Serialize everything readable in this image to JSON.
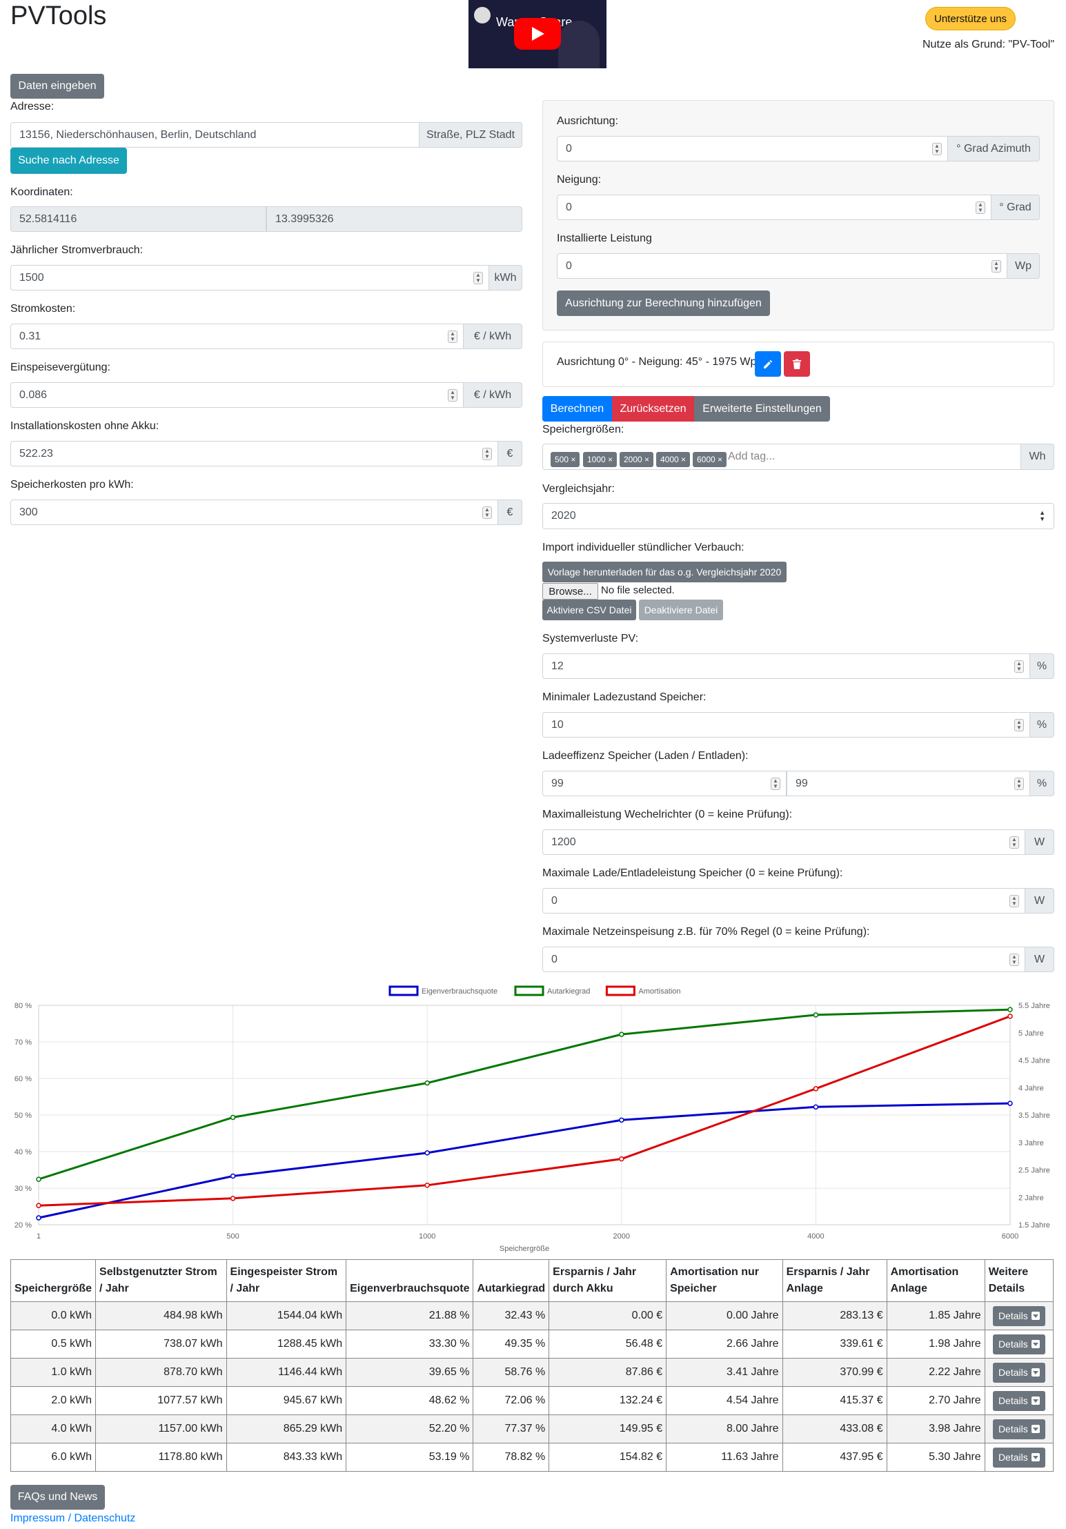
{
  "header": {
    "title": "PVTools",
    "support_label": "Unterstütze uns",
    "support_note": "Nutze als Grund: \"PV-Tool\"",
    "video_title": "Warum Spare ..."
  },
  "left": {
    "daten_button": "Daten eingeben",
    "adresse_label": "Adresse:",
    "adresse_value": "13156, Niederschönhausen, Berlin, Deutschland",
    "adresse_addon": "Straße, PLZ Stadt",
    "search_button": "Suche nach Adresse",
    "koordinaten_label": "Koordinaten:",
    "lat": "52.5814116",
    "lon": "13.3995326",
    "verbrauch_label": "Jährlicher Stromverbrauch:",
    "verbrauch_value": "1500",
    "verbrauch_unit": "kWh",
    "kosten_label": "Stromkosten:",
    "kosten_value": "0.31",
    "kosten_unit": "€ / kWh",
    "einspeise_label": "Einspeisevergütung:",
    "einspeise_value": "0.086",
    "einspeise_unit": "€ / kWh",
    "install_label": "Installationskosten ohne Akku:",
    "install_value": "522.23",
    "install_unit": "€",
    "speicher_label": "Speicherkosten pro kWh:",
    "speicher_value": "300",
    "speicher_unit": "€"
  },
  "right": {
    "ausrichtung_label": "Ausrichtung:",
    "ausrichtung_value": "0",
    "ausrichtung_unit": "° Grad Azimuth",
    "neigung_label": "Neigung:",
    "neigung_value": "0",
    "neigung_unit": "° Grad",
    "leistung_label": "Installierte Leistung",
    "leistung_value": "0",
    "leistung_unit": "Wp",
    "add_button": "Ausrichtung zur Berechnung hinzufügen",
    "entry_text": "Ausrichtung 0° - Neigung: 45° - 1975 Wp",
    "berechnen": "Berechnen",
    "reset": "Zurücksetzen",
    "erweitert": "Erweiterte Einstellungen",
    "speichergroessen_label": "Speichergrößen:",
    "tags": [
      "500 ×",
      "1000 ×",
      "2000 ×",
      "4000 ×",
      "6000 ×"
    ],
    "tag_placeholder": "Add tag...",
    "tag_unit": "Wh",
    "vergleich_label": "Vergleichsjahr:",
    "vergleich_value": "2020",
    "import_label": "Import individueller stündlicher Verbauch:",
    "vorlage_button": "Vorlage herunterladen für das o.g. Vergleichsjahr 2020",
    "browse_button": "Browse...",
    "no_file": "No file selected.",
    "aktiviere_button": "Aktiviere CSV Datei",
    "deaktiviere_button": "Deaktiviere Datei",
    "systemverluste_label": "Systemverluste PV:",
    "systemverluste_value": "12",
    "pct": "%",
    "minlade_label": "Minimaler Ladezustand Speicher:",
    "minlade_value": "10",
    "ladeeff_label": "Ladeeffizenz Speicher (Laden / Entladen):",
    "ladeeff_value1": "99",
    "ladeeff_value2": "99",
    "wr_label": "Maximalleistung Wechelrichter (0 = keine Prüfung):",
    "wr_value": "1200",
    "w": "W",
    "lade_label": "Maximale Lade/Entladeleistung Speicher (0 = keine Prüfung):",
    "lade_value": "0",
    "netz_label": "Maximale Netzeinspeisung z.B. für 70% Regel (0 = keine Prüfung):",
    "netz_value": "0"
  },
  "chart_data": {
    "type": "line",
    "x": [
      1,
      500,
      1000,
      2000,
      4000,
      6000
    ],
    "xlabel": "Speichergröße",
    "x_tick_labels": [
      "1",
      "500",
      "1000",
      "2000",
      "4000",
      "6000"
    ],
    "y_left_ticks": [
      "80 %",
      "70 %",
      "60 %",
      "50 %",
      "40 %",
      "30 %",
      "20 %"
    ],
    "y_right_ticks": [
      "5.5 Jahre",
      "5 Jahre",
      "4.5 Jahre",
      "4 Jahre",
      "3.5 Jahre",
      "3 Jahre",
      "2.5 Jahre",
      "2 Jahre",
      "1.5 Jahre"
    ],
    "ylim_left": [
      20,
      80
    ],
    "ylim_right": [
      1.5,
      5.5
    ],
    "legend_position": "top",
    "grid": true,
    "series": [
      {
        "name": "Eigenverbrauchsquote",
        "axis": "left",
        "color": "#0000cc",
        "values": [
          21.88,
          33.3,
          39.65,
          48.62,
          52.2,
          53.19
        ]
      },
      {
        "name": "Autarkiegrad",
        "axis": "left",
        "color": "#007700",
        "values": [
          32.43,
          49.35,
          58.76,
          72.06,
          77.37,
          78.82
        ]
      },
      {
        "name": "Amortisation",
        "axis": "right",
        "color": "#dd0000",
        "values": [
          1.85,
          1.98,
          2.22,
          2.7,
          3.98,
          5.3
        ]
      }
    ]
  },
  "table": {
    "headers": [
      "Speichergröße",
      "Selbstgenutzter Strom / Jahr",
      "Eingespeister Strom / Jahr",
      "Eigenverbrauchsquote",
      "Autarkiegrad",
      "Ersparnis / Jahr durch Akku",
      "Amortisation nur Speicher",
      "Ersparnis / Jahr Anlage",
      "Amortisation Anlage",
      "Weitere Details"
    ],
    "details_label": "Details",
    "rows": [
      [
        "0.0 kWh",
        "484.98 kWh",
        "1544.04 kWh",
        "21.88 %",
        "32.43 %",
        "0.00 €",
        "0.00 Jahre",
        "283.13 €",
        "1.85 Jahre"
      ],
      [
        "0.5 kWh",
        "738.07 kWh",
        "1288.45 kWh",
        "33.30 %",
        "49.35 %",
        "56.48 €",
        "2.66 Jahre",
        "339.61 €",
        "1.98 Jahre"
      ],
      [
        "1.0 kWh",
        "878.70 kWh",
        "1146.44 kWh",
        "39.65 %",
        "58.76 %",
        "87.86 €",
        "3.41 Jahre",
        "370.99 €",
        "2.22 Jahre"
      ],
      [
        "2.0 kWh",
        "1077.57 kWh",
        "945.67 kWh",
        "48.62 %",
        "72.06 %",
        "132.24 €",
        "4.54 Jahre",
        "415.37 €",
        "2.70 Jahre"
      ],
      [
        "4.0 kWh",
        "1157.00 kWh",
        "865.29 kWh",
        "52.20 %",
        "77.37 %",
        "149.95 €",
        "8.00 Jahre",
        "433.08 €",
        "3.98 Jahre"
      ],
      [
        "6.0 kWh",
        "1178.80 kWh",
        "843.33 kWh",
        "53.19 %",
        "78.82 %",
        "154.82 €",
        "11.63 Jahre",
        "437.95 €",
        "5.30 Jahre"
      ]
    ]
  },
  "footer": {
    "faq_button": "FAQs und News",
    "impressum_link": "Impressum / Datenschutz"
  }
}
